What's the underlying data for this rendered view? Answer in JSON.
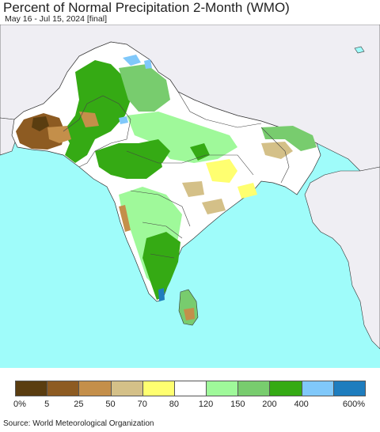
{
  "header": {
    "title": "Percent of Normal Precipitation 2-Month (WMO)",
    "subtitle": "May 16 - Jul 15, 2024 [final]"
  },
  "legend": {
    "bins": [
      {
        "color": "#5a3d10"
      },
      {
        "color": "#8d5b22"
      },
      {
        "color": "#c48f4a"
      },
      {
        "color": "#d4c088"
      },
      {
        "color": "#ffff70"
      },
      {
        "color": "#ffffff"
      },
      {
        "color": "#9ff99a"
      },
      {
        "color": "#78cc6e"
      },
      {
        "color": "#35aa14"
      },
      {
        "color": "#80c8fa"
      },
      {
        "color": "#1e7dbe"
      }
    ],
    "ticks": [
      "0%",
      "5",
      "25",
      "50",
      "70",
      "80",
      "120",
      "150",
      "200",
      "400",
      "600%"
    ]
  },
  "source": "Source: World Meteorological Organization",
  "colors": {
    "ocean": "#9ffcfa",
    "outside_land": "#efeef3",
    "border": "#333333"
  }
}
